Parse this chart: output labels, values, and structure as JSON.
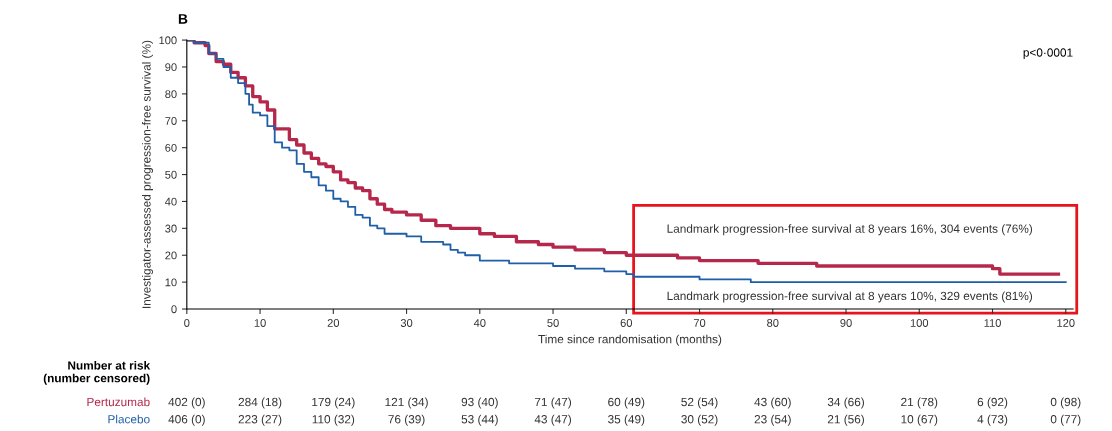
{
  "chart_data": {
    "type": "step",
    "title": "B",
    "xlabel": "Time since randomisation (months)",
    "ylabel": "Investigator-assessed progression-free survival (%)",
    "xlim": [
      0,
      121
    ],
    "xticks": [
      0,
      10,
      20,
      30,
      40,
      50,
      60,
      70,
      80,
      90,
      100,
      110,
      120
    ],
    "ylim": [
      0,
      100
    ],
    "yticks": [
      0,
      10,
      20,
      30,
      40,
      50,
      60,
      70,
      80,
      90,
      100
    ],
    "grid": false,
    "legend": false,
    "line_style": "solid",
    "series": [
      {
        "name": "Pertuzumab",
        "color": "#b5284b",
        "x": [
          0,
          1,
          2.5,
          3,
          4,
          5,
          6,
          7,
          8,
          9,
          10,
          11,
          12,
          14,
          15,
          16,
          17,
          18,
          19,
          20,
          21,
          22,
          23,
          24,
          25,
          26,
          27,
          28,
          30,
          32,
          34,
          36,
          40,
          42,
          45,
          48,
          50,
          53,
          57,
          60,
          67,
          70,
          78,
          86,
          95,
          110,
          111,
          119
        ],
        "values": [
          100,
          99,
          98,
          95,
          92,
          91,
          88,
          86,
          83,
          79,
          77,
          74,
          67,
          63,
          61,
          58,
          56,
          54,
          53,
          51,
          48,
          47,
          45,
          44,
          41,
          39,
          37,
          36,
          35,
          33,
          31,
          30,
          28,
          27,
          25,
          24,
          23,
          22,
          21,
          20,
          19,
          18,
          17,
          16,
          16,
          15,
          13,
          13
        ]
      },
      {
        "name": "Placebo",
        "color": "#1f5fa8",
        "x": [
          0,
          1,
          3,
          4,
          5,
          6,
          7,
          8,
          8.5,
          9,
          10,
          11,
          12,
          13,
          14,
          15,
          16,
          17,
          18,
          19,
          20,
          21,
          22,
          23,
          24,
          25,
          26,
          27,
          30,
          32,
          35,
          36,
          37,
          38,
          40,
          44,
          50,
          53,
          57,
          60,
          61,
          70,
          77,
          120
        ],
        "values": [
          100,
          99,
          95,
          93,
          90,
          86,
          84,
          80,
          76,
          73,
          72,
          68,
          62,
          60,
          59,
          54,
          51,
          49,
          46,
          44,
          41,
          40,
          38,
          35,
          34,
          31,
          30,
          28,
          27,
          25,
          24,
          22,
          21,
          20,
          18,
          17,
          16,
          15,
          14,
          13,
          12,
          11,
          10,
          10
        ]
      }
    ],
    "annotations": [
      "p<0·0001",
      "Landmark progression-free survival at 8 years 16%, 304 events (76%)",
      "Landmark progression-free survival at 8 years 10%, 329 events (81%)",
      "Number at risk\n(number censored)",
      "402 (0)",
      "284 (18)",
      "179 (24)",
      "121 (34)",
      "93 (40)",
      "71 (47)",
      "60 (49)",
      "52 (54)",
      "43 (60)",
      "34 (66)",
      "21 (78)",
      "6 (92)",
      "0 (98)",
      "406 (0)",
      "223 (27)",
      "110 (32)",
      "76 (39)",
      "53 (44)",
      "43 (47)",
      "35 (49)",
      "30 (52)",
      "23 (54)",
      "21 (56)",
      "10 (67)",
      "4 (73)",
      "0 (77)"
    ]
  }
}
